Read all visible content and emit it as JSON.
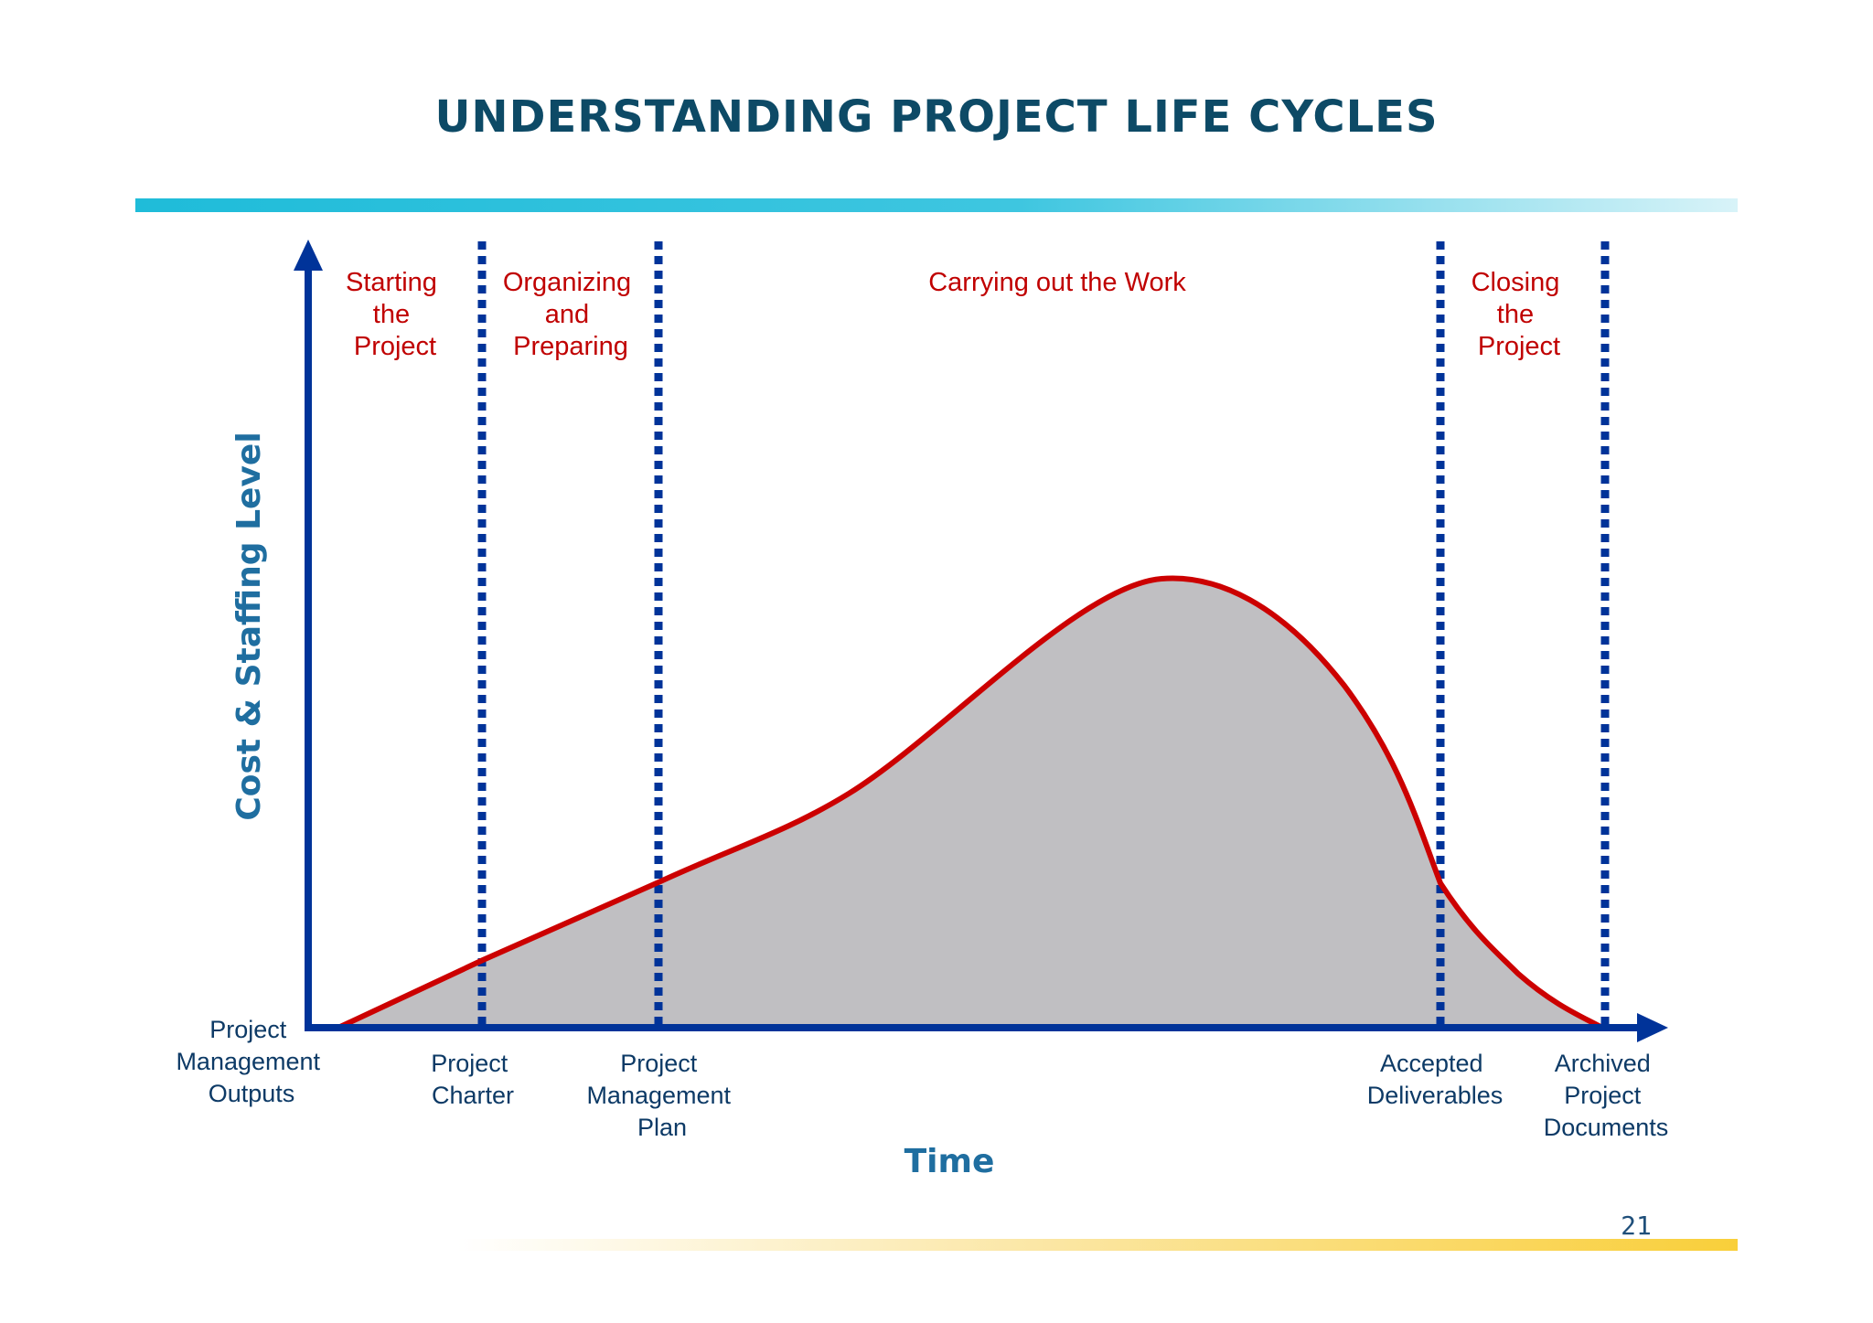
{
  "slide": {
    "title": "UNDERSTANDING PROJECT LIFE CYCLES",
    "page_number": "21"
  },
  "axes": {
    "y_label": "Cost & Staffing Level",
    "x_label": "Time"
  },
  "phases": [
    {
      "lines": [
        "Starting",
        "the",
        "Project"
      ]
    },
    {
      "lines": [
        "Organizing",
        "and",
        "Preparing"
      ]
    },
    {
      "lines": [
        "Carrying out the Work"
      ]
    },
    {
      "lines": [
        "Closing",
        "the",
        "Project"
      ]
    }
  ],
  "milestones": [
    {
      "lines": [
        "Project",
        "Management",
        "Outputs"
      ]
    },
    {
      "lines": [
        "Project",
        "Charter"
      ]
    },
    {
      "lines": [
        "Project",
        "Management",
        "Plan"
      ]
    },
    {
      "lines": [
        "Accepted",
        "Deliverables"
      ]
    },
    {
      "lines": [
        "Archived",
        "Project",
        "Documents"
      ]
    }
  ],
  "colors": {
    "title": "#0d4a66",
    "axis": "#003399",
    "divider": "#003399",
    "curve": "#cc0000",
    "fill": "#c0bfc2",
    "phase_text": "#c00000",
    "milestone_text": "#0d3a66",
    "axis_label": "#1f6ea0",
    "top_bar_start": "#1fbcd9",
    "bottom_bar_end": "#f9cf3a"
  }
}
